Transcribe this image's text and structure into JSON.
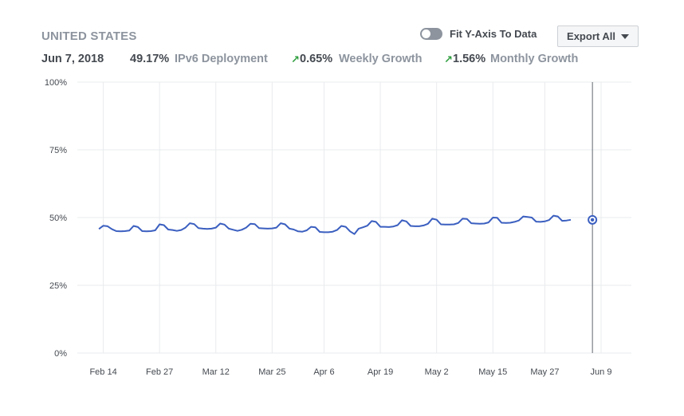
{
  "header": {
    "country": "UNITED STATES",
    "date": "Jun 7, 2018",
    "deployment_value": "49.17%",
    "deployment_label": "IPv6 Deployment",
    "weekly_value": "0.65%",
    "weekly_label": "Weekly Growth",
    "monthly_value": "1.56%",
    "monthly_label": "Monthly Growth",
    "growth_arrow_icon": "up-right-arrow-icon"
  },
  "controls": {
    "fit_toggle_label": "Fit Y-Axis To Data",
    "fit_toggle_on": false,
    "export_label": "Export All"
  },
  "colors": {
    "line": "#3b5fc0",
    "growth": "#2e9e3e",
    "grid": "#e9ebee",
    "text_muted": "#8d949e"
  },
  "chart_data": {
    "type": "line",
    "title": "",
    "xlabel": "",
    "ylabel": "",
    "ylim": [
      0,
      100
    ],
    "y_ticks": [
      "0%",
      "25%",
      "50%",
      "75%",
      "100%"
    ],
    "y_tick_values": [
      0,
      25,
      50,
      75,
      100
    ],
    "x_ticks": [
      "Feb 14",
      "Feb 27",
      "Mar 12",
      "Mar 25",
      "Apr 6",
      "Apr 19",
      "May 2",
      "May 15",
      "May 27",
      "Jun 9"
    ],
    "x_tick_values": [
      "2018-02-14",
      "2018-02-27",
      "2018-03-12",
      "2018-03-25",
      "2018-04-06",
      "2018-04-19",
      "2018-05-02",
      "2018-05-15",
      "2018-05-27",
      "2018-06-09"
    ],
    "xlim": [
      "2018-02-08",
      "2018-06-16"
    ],
    "x_start": "2018-02-13",
    "grid": true,
    "cursor_date": "2018-06-07",
    "cursor_value": 49.17,
    "series": [
      {
        "values": [
          45.8,
          47.0,
          46.8,
          45.7,
          45.0,
          44.9,
          45.0,
          45.2,
          46.9,
          46.5,
          45.0,
          44.9,
          45.0,
          45.3,
          47.5,
          47.2,
          45.6,
          45.4,
          45.1,
          45.4,
          46.3,
          47.9,
          47.6,
          46.1,
          45.9,
          45.8,
          45.9,
          46.3,
          47.8,
          47.4,
          45.9,
          45.5,
          45.1,
          45.5,
          46.3,
          47.7,
          47.6,
          46.1,
          46.0,
          45.9,
          46.0,
          46.3,
          47.9,
          47.5,
          45.9,
          45.6,
          44.9,
          44.8,
          45.3,
          46.6,
          46.4,
          44.7,
          44.6,
          44.6,
          44.8,
          45.4,
          46.9,
          46.6,
          44.9,
          43.9,
          45.9,
          46.4,
          47.0,
          48.7,
          48.4,
          46.6,
          46.6,
          46.5,
          46.7,
          47.2,
          49.0,
          48.6,
          46.9,
          46.8,
          46.8,
          47.1,
          47.7,
          49.6,
          49.2,
          47.5,
          47.4,
          47.4,
          47.5,
          48.0,
          49.6,
          49.5,
          47.9,
          47.8,
          47.7,
          47.8,
          48.2,
          50.0,
          49.9,
          48.1,
          48.0,
          48.1,
          48.4,
          48.9,
          50.4,
          50.2,
          50.0,
          48.5,
          48.4,
          48.6,
          49.1,
          50.7,
          50.4,
          48.8,
          48.9,
          49.17
        ]
      }
    ]
  }
}
